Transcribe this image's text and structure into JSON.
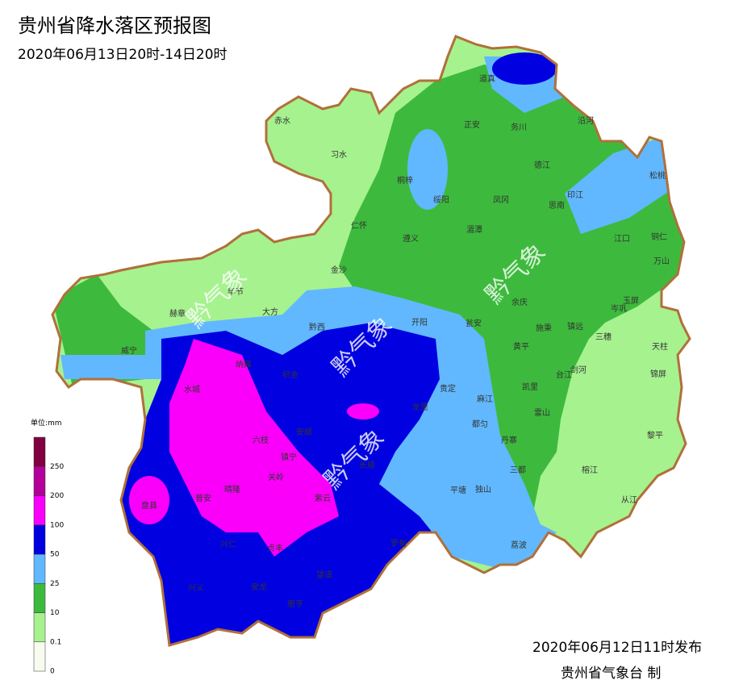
{
  "header": {
    "title": "贵州省降水落区预报图",
    "subtitle": "2020年06月13日20时-14日20时"
  },
  "legend": {
    "unit": "单位:mm",
    "levels": [
      "0",
      "0.1",
      "10",
      "25",
      "50",
      "100",
      "200",
      "250"
    ],
    "colors": [
      "#f8fcee",
      "#a6f28f",
      "#3dba3d",
      "#61b8ff",
      "#0000e1",
      "#fa00fa",
      "#b4009b",
      "#800040"
    ]
  },
  "watermark": "黔气象",
  "counties": [
    "道真",
    "正安",
    "务川",
    "沿河",
    "赤水",
    "习水",
    "桐梓",
    "德江",
    "松桃",
    "绥阳",
    "凤冈",
    "印江",
    "思南",
    "仁怀",
    "湄潭",
    "遵义",
    "江口",
    "铜仁",
    "万山",
    "金沙",
    "毕节",
    "玉屏",
    "余庆",
    "岑巩",
    "赫章",
    "大方",
    "开阳",
    "瓮安",
    "施秉",
    "镇远",
    "黔西",
    "三穗",
    "天柱",
    "威宁",
    "黄平",
    "纳雍",
    "台江",
    "剑河",
    "锦屏",
    "织金",
    "贵定",
    "凯里",
    "麻江",
    "水城",
    "龙里",
    "雷山",
    "都匀",
    "安顺",
    "丹寨",
    "黎平",
    "六枝",
    "镇宁",
    "关岭",
    "三都",
    "长顺",
    "平塘",
    "独山",
    "紫云",
    "榕江",
    "从江",
    "盘县",
    "普安",
    "晴隆",
    "兴仁",
    "贞丰",
    "罗甸",
    "荔波",
    "望谟",
    "兴义",
    "安龙",
    "册亨"
  ],
  "footer": {
    "issued": "2020年06月12日11时发布",
    "producer": "贵州省气象台 制"
  }
}
